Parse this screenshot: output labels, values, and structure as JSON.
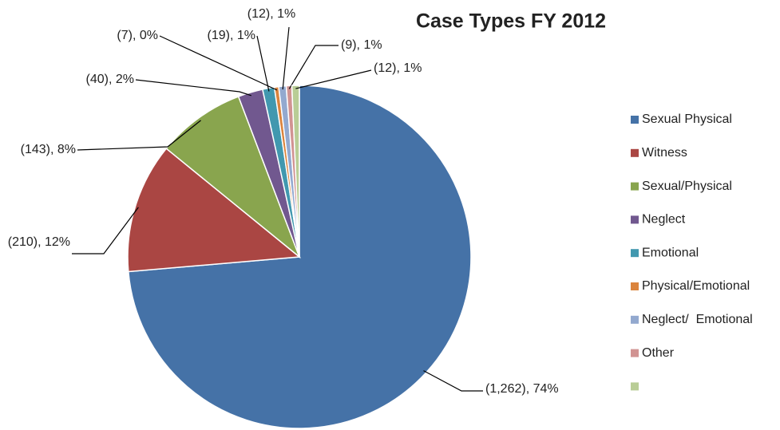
{
  "chart_data": {
    "type": "pie",
    "title": "Case Types FY 2012",
    "categories": [
      "Sexual Physical",
      "Witness",
      "Sexual/Physical",
      "Neglect",
      "Emotional",
      "Physical/Emotional",
      "Neglect/  Emotional",
      "Other",
      null
    ],
    "values": [
      1262,
      210,
      143,
      40,
      19,
      7,
      12,
      9,
      12
    ],
    "value_labels": [
      "(1,262), 74%",
      "(210), 12%",
      "(143), 8%",
      "(40), 2%",
      "(19), 1%",
      "(7), 0%",
      "(12), 1%",
      "(9), 1%",
      "(12), 1%"
    ],
    "colors": [
      "#4572a7",
      "#aa4643",
      "#89a54e",
      "#71588f",
      "#4198af",
      "#db843d",
      "#93a9cf",
      "#d19392",
      "#b9cd96"
    ],
    "legend": "right"
  }
}
